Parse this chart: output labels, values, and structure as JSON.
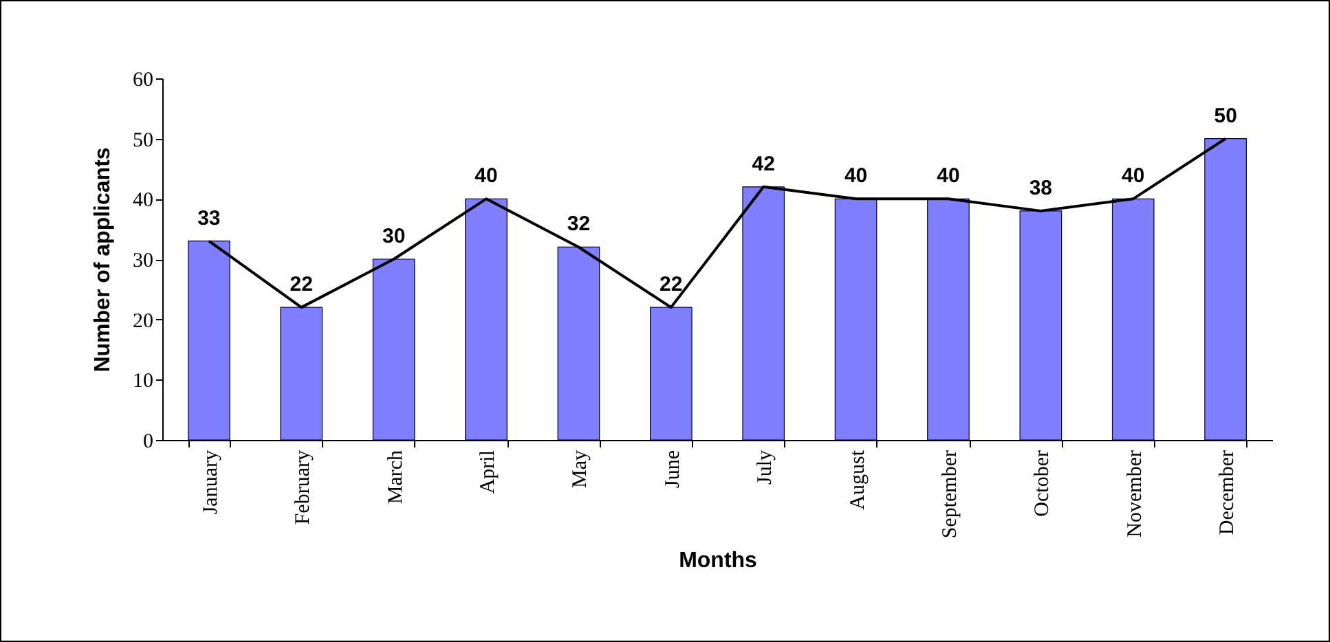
{
  "chart_data": {
    "type": "bar",
    "xlabel": "Months",
    "ylabel": "Number of applicants",
    "categories": [
      "January",
      "February",
      "March",
      "April",
      "May",
      "June",
      "July",
      "August",
      "September",
      "October",
      "November",
      "December"
    ],
    "series": [
      {
        "color": "#8080ff",
        "values": [
          33,
          22,
          30,
          40,
          32,
          22,
          42,
          40,
          40,
          38,
          40,
          50
        ],
        "value_labels": [
          "33",
          "22",
          "30",
          "40",
          "32",
          "22",
          "42",
          "40",
          "40",
          "38",
          "40",
          "50"
        ]
      },
      {
        "type": "line",
        "color": "#000000",
        "values": [
          33,
          22,
          30,
          40,
          32,
          22,
          42,
          40,
          40,
          38,
          40,
          50
        ]
      }
    ],
    "ylim": [
      0,
      60
    ],
    "yticks": [
      0,
      10,
      20,
      30,
      40,
      50,
      60
    ],
    "line_style": "solid"
  }
}
